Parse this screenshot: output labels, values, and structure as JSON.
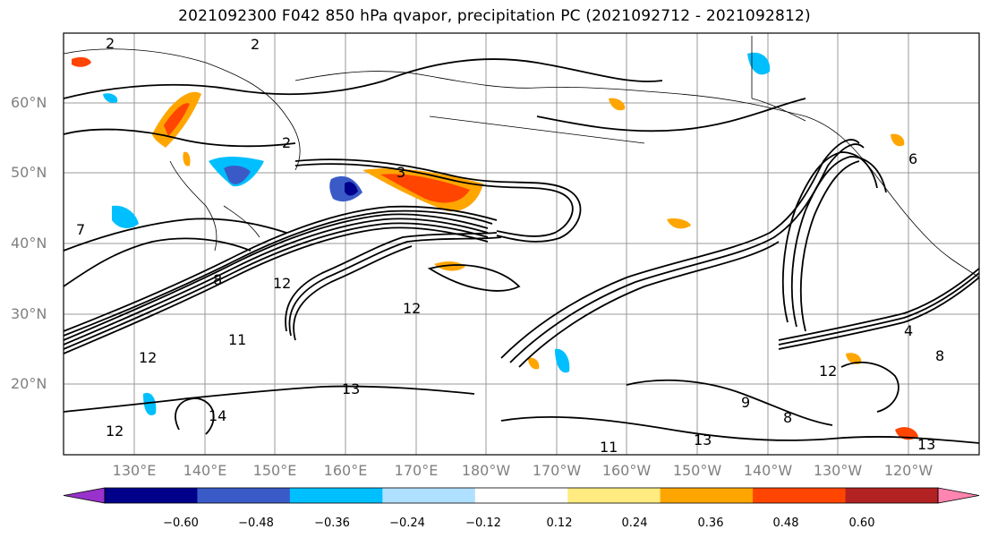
{
  "title": "2021092300 F042 850 hPa qvapor, precipitation PC (2021092712 - 2021092812)",
  "map": {
    "lat_labels": [
      "60°N",
      "50°N",
      "40°N",
      "30°N",
      "20°N"
    ],
    "lon_labels": [
      "130°E",
      "140°E",
      "150°E",
      "160°E",
      "170°E",
      "180°W",
      "170°W",
      "160°W",
      "150°W",
      "140°W",
      "130°W",
      "120°W"
    ],
    "contour_labels": [
      "2",
      "2",
      "2",
      "3",
      "7",
      "8",
      "12",
      "12",
      "11",
      "13",
      "12",
      "14",
      "12",
      "11",
      "9",
      "8",
      "12",
      "13",
      "13",
      "8",
      "6",
      "4"
    ]
  },
  "colorbar": {
    "colors": [
      "#9932cc",
      "#00008b",
      "#3a5bc7",
      "#00bfff",
      "#b0e0ff",
      "#ffffff",
      "#ffeb80",
      "#ffa500",
      "#ff4500",
      "#b22222",
      "#ff85b0"
    ],
    "tick_labels": [
      "−0.60",
      "−0.48",
      "−0.36",
      "−0.24",
      "−0.12",
      "0.12",
      "0.24",
      "0.36",
      "0.48",
      "0.60"
    ]
  }
}
